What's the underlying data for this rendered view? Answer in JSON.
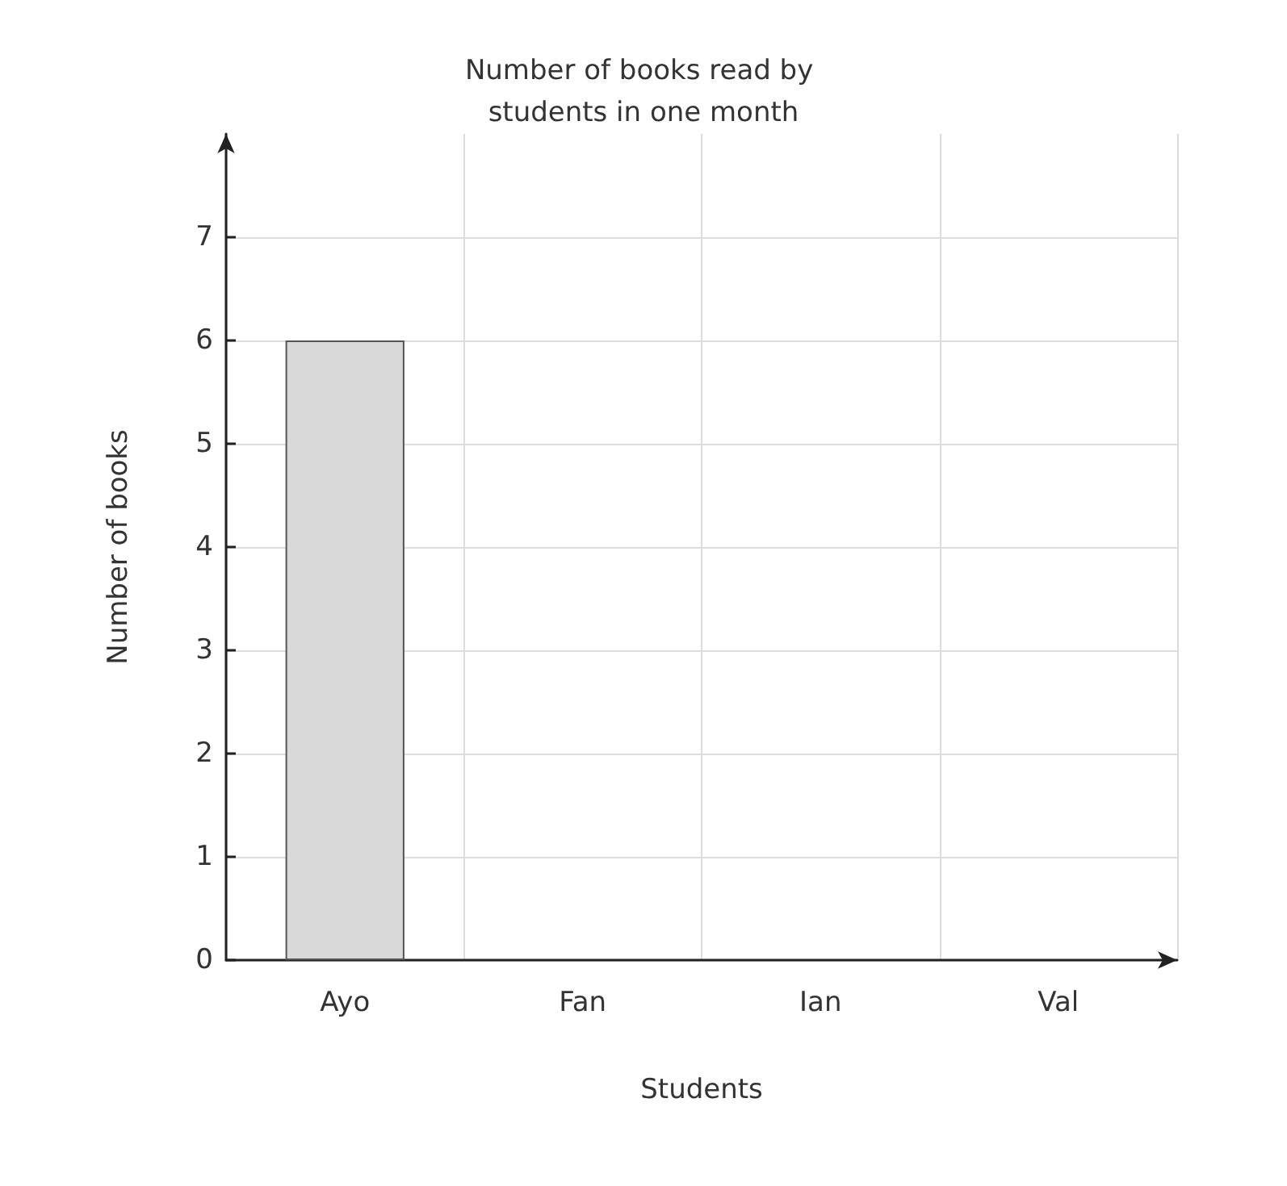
{
  "chart_data": {
    "type": "bar",
    "title": "Number of books read by students in one month",
    "xlabel": "Students",
    "ylabel": "Number of books",
    "categories": [
      "Ayo",
      "Fan",
      "Ian",
      "Val"
    ],
    "values": [
      6,
      null,
      null,
      null
    ],
    "color": "#d9d9d9",
    "ylim": [
      0,
      8
    ],
    "yticks": [
      0,
      1,
      2,
      3,
      4,
      5,
      6,
      7
    ],
    "grid": true
  }
}
